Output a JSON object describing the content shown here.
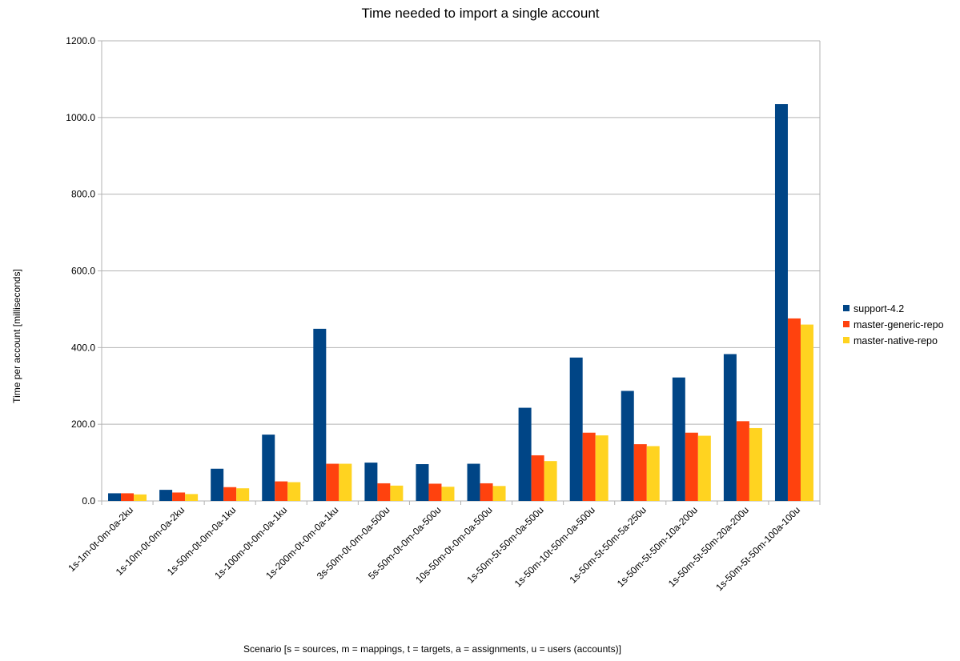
{
  "chart_data": {
    "type": "bar",
    "title": "Time needed to import a single account",
    "xlabel": "Scenario [s = sources, m = mappings, t = targets, a = assignments, u = users (accounts)]",
    "ylabel": "Time per account [milliseconds]",
    "ylim": [
      0,
      1200
    ],
    "yticks": [
      "0.0",
      "200.0",
      "400.0",
      "600.0",
      "800.0",
      "1000.0",
      "1200.0"
    ],
    "grid": true,
    "legend_position": "right",
    "categories": [
      "1s-1m-0t-0m-0a-2ku",
      "1s-10m-0t-0m-0a-2ku",
      "1s-50m-0t-0m-0a-1ku",
      "1s-100m-0t-0m-0a-1ku",
      "1s-200m-0t-0m-0a-1ku",
      "3s-50m-0t-0m-0a-500u",
      "5s-50m-0t-0m-0a-500u",
      "10s-50m-0t-0m-0a-500u",
      "1s-50m-5t-50m-0a-500u",
      "1s-50m-10t-50m-0a-500u",
      "1s-50m-5t-50m-5a-250u",
      "1s-50m-5t-50m-10a-200u",
      "1s-50m-5t-50m-20a-200u",
      "1s-50m-5t-50m-100a-100u"
    ],
    "series": [
      {
        "name": "support-4.2",
        "color": "#004586",
        "values": [
          20,
          29,
          84,
          173,
          449,
          100,
          96,
          97,
          243,
          374,
          287,
          322,
          383,
          1035
        ]
      },
      {
        "name": "master-generic-repo",
        "color": "#ff420e",
        "values": [
          20,
          22,
          36,
          51,
          97,
          46,
          45,
          46,
          119,
          178,
          148,
          178,
          208,
          476
        ]
      },
      {
        "name": "master-native-repo",
        "color": "#ffd320",
        "values": [
          17,
          18,
          33,
          49,
          97,
          40,
          37,
          39,
          104,
          171,
          143,
          170,
          190,
          460
        ]
      }
    ]
  }
}
